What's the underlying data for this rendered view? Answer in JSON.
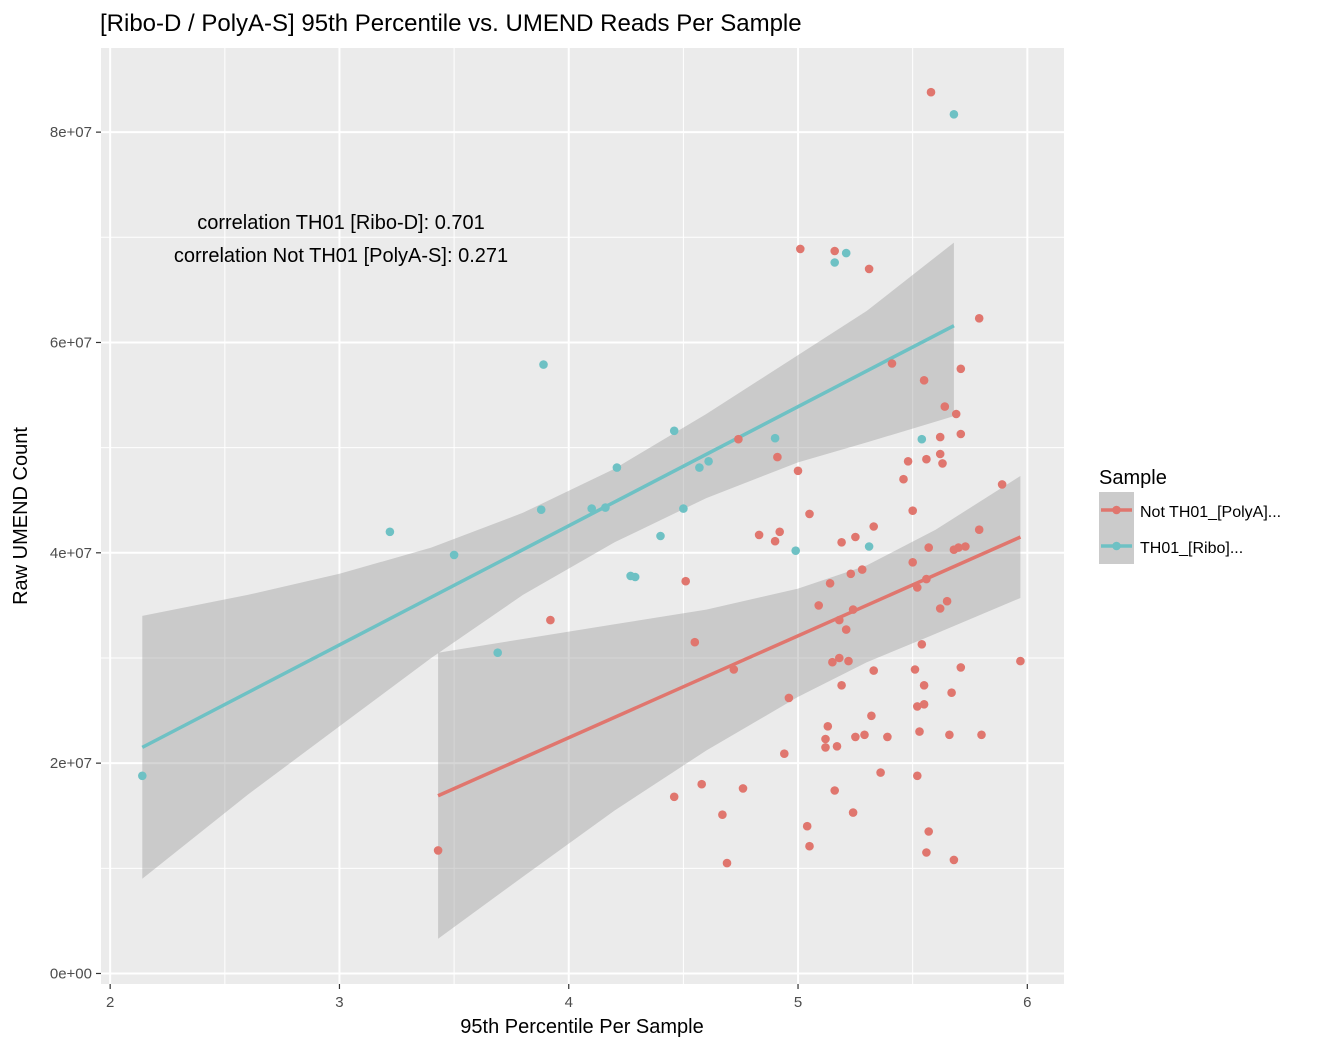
{
  "chart_data": {
    "type": "scatter",
    "title": "[Ribo-D / PolyA-S] 95th Percentile vs. UMEND Reads Per Sample",
    "xlabel": "95th Percentile Per Sample",
    "ylabel": "Raw UMEND Count",
    "xlim": [
      1.96,
      6.16
    ],
    "ylim": [
      -1000000.0,
      88000000.0
    ],
    "xticks": [
      2,
      3,
      4,
      5,
      6
    ],
    "xtick_labels": [
      "2",
      "3",
      "4",
      "5",
      "6"
    ],
    "yticks": [
      0,
      20000000,
      40000000,
      60000000,
      80000000
    ],
    "ytick_labels": [
      "0e+00",
      "2e+07",
      "4e+07",
      "6e+07",
      "8e+07"
    ],
    "grid": true,
    "legend": {
      "title": "Sample",
      "position": "right",
      "entries": [
        "Not TH01_[PolyA]...",
        "TH01_[Ribo]..."
      ]
    },
    "annotations": [
      "correlation TH01 [Ribo-D]: 0.701",
      "correlation Not TH01 [PolyA-S]: 0.271"
    ],
    "colors": {
      "not_th01": "#E0766E",
      "th01": "#6EC1C4",
      "panel_bg": "#EBEBEB",
      "ribbon": "#999999"
    },
    "series": [
      {
        "name": "TH01_[Ribo]...",
        "color": "#6EC1C4",
        "points": [
          [
            2.14,
            18800000
          ],
          [
            3.22,
            42000000
          ],
          [
            3.5,
            39800000
          ],
          [
            3.69,
            30500000
          ],
          [
            3.88,
            44100000
          ],
          [
            3.89,
            57900000
          ],
          [
            4.1,
            44200000
          ],
          [
            4.16,
            44300000
          ],
          [
            4.21,
            48100000
          ],
          [
            4.27,
            37800000
          ],
          [
            4.29,
            37700000
          ],
          [
            4.4,
            41600000
          ],
          [
            4.46,
            51600000
          ],
          [
            4.5,
            44200000
          ],
          [
            4.57,
            48100000
          ],
          [
            4.61,
            48700000
          ],
          [
            4.9,
            50900000
          ],
          [
            4.99,
            40200000
          ],
          [
            5.16,
            67600000
          ],
          [
            5.21,
            68500000
          ],
          [
            5.31,
            40600000
          ],
          [
            5.54,
            50800000
          ],
          [
            5.68,
            81700000
          ]
        ],
        "fit": {
          "x": [
            2.14,
            5.68
          ],
          "y": [
            21500000,
            61600000
          ]
        },
        "band": {
          "x": [
            2.14,
            2.6,
            3.0,
            3.4,
            3.8,
            4.2,
            4.6,
            5.0,
            5.3,
            5.68
          ],
          "lower": [
            9000000,
            17000000,
            23500000,
            30000000,
            36000000,
            41000000,
            45200000,
            48600000,
            50500000,
            53000000
          ],
          "upper": [
            34000000,
            36000000,
            38000000,
            40500000,
            43800000,
            48000000,
            53200000,
            58800000,
            63000000,
            69500000
          ]
        }
      },
      {
        "name": "Not TH01_[PolyA]...",
        "color": "#E0766E",
        "points": [
          [
            3.43,
            11700000
          ],
          [
            3.92,
            33600000
          ],
          [
            4.46,
            16800000
          ],
          [
            4.51,
            37300000
          ],
          [
            4.55,
            31500000
          ],
          [
            4.58,
            18000000
          ],
          [
            4.67,
            15100000
          ],
          [
            4.69,
            10500000
          ],
          [
            4.72,
            28900000
          ],
          [
            4.74,
            50800000
          ],
          [
            4.76,
            17600000
          ],
          [
            4.83,
            41700000
          ],
          [
            4.9,
            41100000
          ],
          [
            4.91,
            49100000
          ],
          [
            4.92,
            42000000
          ],
          [
            4.94,
            20900000
          ],
          [
            4.96,
            26200000
          ],
          [
            5.0,
            47800000
          ],
          [
            5.01,
            68900000
          ],
          [
            5.04,
            14000000
          ],
          [
            5.05,
            12100000
          ],
          [
            5.05,
            43700000
          ],
          [
            5.09,
            35000000
          ],
          [
            5.12,
            22300000
          ],
          [
            5.12,
            21500000
          ],
          [
            5.13,
            23500000
          ],
          [
            5.14,
            37100000
          ],
          [
            5.15,
            29600000
          ],
          [
            5.16,
            68700000
          ],
          [
            5.16,
            17400000
          ],
          [
            5.17,
            21600000
          ],
          [
            5.18,
            33600000
          ],
          [
            5.18,
            30000000
          ],
          [
            5.19,
            27400000
          ],
          [
            5.19,
            41000000
          ],
          [
            5.21,
            32700000
          ],
          [
            5.22,
            29700000
          ],
          [
            5.23,
            38000000
          ],
          [
            5.24,
            34600000
          ],
          [
            5.24,
            15300000
          ],
          [
            5.25,
            22500000
          ],
          [
            5.25,
            41500000
          ],
          [
            5.28,
            38400000
          ],
          [
            5.29,
            22700000
          ],
          [
            5.31,
            67000000
          ],
          [
            5.32,
            24500000
          ],
          [
            5.33,
            28800000
          ],
          [
            5.33,
            42500000
          ],
          [
            5.36,
            19100000
          ],
          [
            5.39,
            22500000
          ],
          [
            5.41,
            58000000
          ],
          [
            5.46,
            47000000
          ],
          [
            5.48,
            48700000
          ],
          [
            5.5,
            44000000
          ],
          [
            5.5,
            39100000
          ],
          [
            5.51,
            28900000
          ],
          [
            5.52,
            36700000
          ],
          [
            5.52,
            18800000
          ],
          [
            5.52,
            25400000
          ],
          [
            5.53,
            23000000
          ],
          [
            5.54,
            31300000
          ],
          [
            5.55,
            25600000
          ],
          [
            5.55,
            56400000
          ],
          [
            5.55,
            27400000
          ],
          [
            5.56,
            11500000
          ],
          [
            5.56,
            48900000
          ],
          [
            5.56,
            37500000
          ],
          [
            5.57,
            13500000
          ],
          [
            5.57,
            40500000
          ],
          [
            5.58,
            83800000
          ],
          [
            5.62,
            49400000
          ],
          [
            5.62,
            51000000
          ],
          [
            5.62,
            34700000
          ],
          [
            5.63,
            48500000
          ],
          [
            5.64,
            53900000
          ],
          [
            5.65,
            35400000
          ],
          [
            5.66,
            22700000
          ],
          [
            5.67,
            26700000
          ],
          [
            5.68,
            40300000
          ],
          [
            5.68,
            10800000
          ],
          [
            5.69,
            53200000
          ],
          [
            5.7,
            40500000
          ],
          [
            5.71,
            57500000
          ],
          [
            5.71,
            29100000
          ],
          [
            5.71,
            51300000
          ],
          [
            5.73,
            40600000
          ],
          [
            5.79,
            62300000
          ],
          [
            5.79,
            42200000
          ],
          [
            5.8,
            22700000
          ],
          [
            5.89,
            46500000
          ],
          [
            5.97,
            29700000
          ]
        ],
        "fit": {
          "x": [
            3.43,
            5.97
          ],
          "y": [
            16900000,
            41500000
          ]
        },
        "band": {
          "x": [
            3.43,
            3.8,
            4.2,
            4.6,
            5.0,
            5.3,
            5.6,
            5.97
          ],
          "lower": [
            3300000,
            9200000,
            15500000,
            21200000,
            26300000,
            29600000,
            32300000,
            35700000
          ],
          "upper": [
            30500000,
            31800000,
            33200000,
            34600000,
            36600000,
            38800000,
            42200000,
            47300000
          ]
        }
      }
    ]
  }
}
